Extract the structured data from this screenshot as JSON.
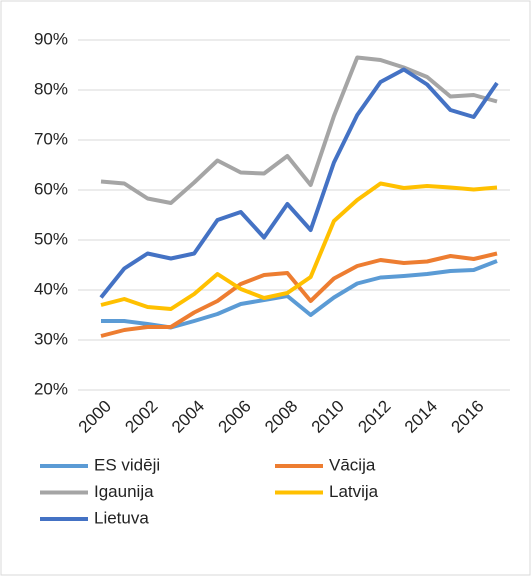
{
  "chart_data": {
    "type": "line",
    "x": [
      2000,
      2001,
      2002,
      2003,
      2004,
      2005,
      2006,
      2007,
      2008,
      2009,
      2010,
      2011,
      2012,
      2013,
      2014,
      2015,
      2016,
      2017
    ],
    "xlim": [
      2000,
      2017
    ],
    "xticks": [
      2000,
      2002,
      2004,
      2006,
      2008,
      2010,
      2012,
      2014,
      2016
    ],
    "ylim": [
      20,
      90
    ],
    "yticks": [
      {
        "value": 20,
        "label": "20%"
      },
      {
        "value": 30,
        "label": "30%"
      },
      {
        "value": 40,
        "label": "40%"
      },
      {
        "value": 50,
        "label": "50%"
      },
      {
        "value": 60,
        "label": "60%"
      },
      {
        "value": 70,
        "label": "70%"
      },
      {
        "value": 80,
        "label": "80%"
      },
      {
        "value": 90,
        "label": "90%"
      }
    ],
    "grid": true,
    "legend": "bottom",
    "series": [
      {
        "name": "ES vidēji",
        "color": "#5b9bd5",
        "values": [
          33.8,
          33.8,
          33.2,
          32.5,
          33.8,
          35.2,
          37.2,
          38,
          38.8,
          35,
          38.5,
          41.3,
          42.5,
          42.8,
          43.2,
          43.8,
          44,
          45.8
        ]
      },
      {
        "name": "Vācija",
        "color": "#ed7d31",
        "values": [
          30.8,
          32,
          32.6,
          32.6,
          35.5,
          37.8,
          41.2,
          43,
          43.4,
          37.8,
          42.3,
          44.8,
          46,
          45.4,
          45.7,
          46.8,
          46.2,
          47.3
        ]
      },
      {
        "name": "Igaunija",
        "color": "#a5a5a5",
        "values": [
          61.7,
          61.3,
          58.3,
          57.4,
          61.5,
          65.9,
          63.5,
          63.3,
          66.8,
          61,
          74.8,
          86.5,
          86,
          84.5,
          82.6,
          78.7,
          79,
          77.7
        ]
      },
      {
        "name": "Latvija",
        "color": "#ffc000",
        "values": [
          37,
          38.2,
          36.6,
          36.2,
          39.2,
          43.2,
          40.2,
          38.4,
          39.4,
          42.6,
          53.8,
          58,
          61.3,
          60.4,
          60.8,
          60.5,
          60.1,
          60.5
        ]
      },
      {
        "name": "Lietuva",
        "color": "#4472c4",
        "values": [
          38.5,
          44.3,
          47.3,
          46.3,
          47.3,
          54,
          55.6,
          50.5,
          57.2,
          52,
          65.5,
          75,
          81.6,
          84.1,
          81.1,
          76,
          74.6,
          81.4
        ]
      }
    ]
  }
}
